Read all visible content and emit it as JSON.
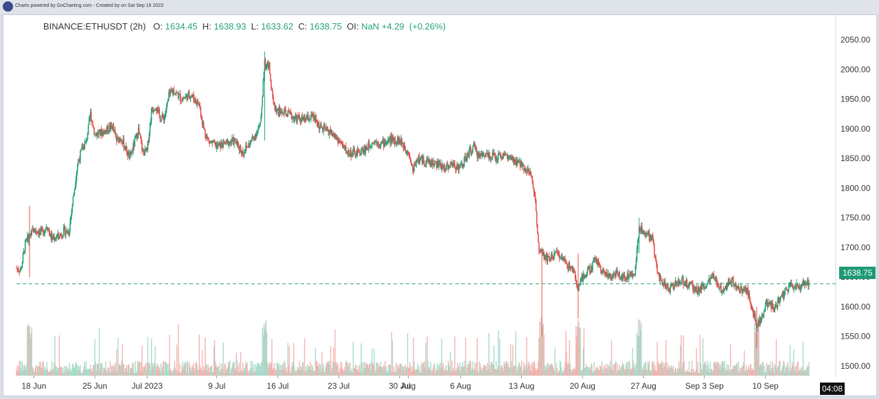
{
  "credit": "Charts powered by GoCharting.com - Created by  on Sat Sep 16 2023",
  "header": {
    "symbol": "BINANCE:ETHUSDT (2h)",
    "o_label": "O:",
    "o_value": "1634.45",
    "h_label": "H:",
    "h_value": "1638.93",
    "l_label": "L:",
    "l_value": "1633.62",
    "c_label": "C:",
    "c_value": "1638.75",
    "oi_label": "OI:",
    "oi_value": "NaN",
    "change": "+4.29",
    "change_pct": "(+0.26%)"
  },
  "last_price_label": "1638.75",
  "time_label": "04:08",
  "colors": {
    "up": "#26a17b",
    "down": "#e0524c",
    "vol_up": "#a6dccb",
    "vol_down": "#f4b3b0",
    "price_line": "#1e9a74"
  },
  "chart_data": {
    "type": "candlestick",
    "symbol": "BINANCE:ETHUSDT",
    "interval": "2h",
    "ylim": [
      1490,
      2090
    ],
    "y_ticks": [
      1500,
      1550,
      1600,
      1650,
      1700,
      1750,
      1800,
      1850,
      1900,
      1950,
      2000,
      2050
    ],
    "y_tick_labels": [
      "1500.00",
      "1550.00",
      "1600.00",
      "1650.00",
      "1700.00",
      "1750.00",
      "1800.00",
      "1850.00",
      "1900.00",
      "1950.00",
      "2000.00",
      "2050.00"
    ],
    "x_tick_labels": [
      "18 Jun",
      "25 Jun",
      "Jul 2023",
      "9 Jul",
      "16 Jul",
      "23 Jul",
      "30 Jul",
      "Aug",
      "6 Aug",
      "13 Aug",
      "20 Aug",
      "27 Aug",
      "Sep 3 Sep",
      "10 Sep"
    ],
    "x_tick_days": [
      2,
      9,
      15,
      23,
      30,
      37,
      44,
      45,
      51,
      58,
      65,
      72,
      79,
      86
    ],
    "days_span": 94,
    "last_price": 1638.75,
    "close_path": [
      [
        0,
        1665
      ],
      [
        0.5,
        1662
      ],
      [
        1,
        1705
      ],
      [
        1.5,
        1722
      ],
      [
        2,
        1730
      ],
      [
        3,
        1725
      ],
      [
        3.5,
        1738
      ],
      [
        4,
        1715
      ],
      [
        5,
        1720
      ],
      [
        5.5,
        1728
      ],
      [
        6,
        1725
      ],
      [
        7,
        1840
      ],
      [
        7.5,
        1865
      ],
      [
        8,
        1878
      ],
      [
        8.5,
        1925
      ],
      [
        9,
        1890
      ],
      [
        10,
        1895
      ],
      [
        11,
        1905
      ],
      [
        11.5,
        1880
      ],
      [
        12,
        1885
      ],
      [
        13,
        1850
      ],
      [
        14,
        1898
      ],
      [
        14.5,
        1860
      ],
      [
        15,
        1862
      ],
      [
        15.5,
        1930
      ],
      [
        16,
        1940
      ],
      [
        16.5,
        1918
      ],
      [
        17,
        1920
      ],
      [
        17.5,
        1955
      ],
      [
        18,
        1965
      ],
      [
        19,
        1950
      ],
      [
        20,
        1958
      ],
      [
        21,
        1940
      ],
      [
        21.5,
        1900
      ],
      [
        22,
        1880
      ],
      [
        23,
        1870
      ],
      [
        24,
        1875
      ],
      [
        25,
        1880
      ],
      [
        26,
        1860
      ],
      [
        27,
        1880
      ],
      [
        28,
        1905
      ],
      [
        28.5,
        2010
      ],
      [
        29,
        2005
      ],
      [
        29.5,
        1940
      ],
      [
        30,
        1930
      ],
      [
        31,
        1925
      ],
      [
        32,
        1918
      ],
      [
        33,
        1915
      ],
      [
        34,
        1920
      ],
      [
        35,
        1900
      ],
      [
        36,
        1895
      ],
      [
        37,
        1880
      ],
      [
        38,
        1860
      ],
      [
        39,
        1858
      ],
      [
        40,
        1865
      ],
      [
        41,
        1880
      ],
      [
        42,
        1875
      ],
      [
        43,
        1882
      ],
      [
        44,
        1880
      ],
      [
        45,
        1862
      ],
      [
        45.5,
        1830
      ],
      [
        46,
        1850
      ],
      [
        47,
        1845
      ],
      [
        48,
        1842
      ],
      [
        49,
        1835
      ],
      [
        50,
        1840
      ],
      [
        51,
        1835
      ],
      [
        52,
        1860
      ],
      [
        52.5,
        1870
      ],
      [
        53,
        1855
      ],
      [
        54,
        1858
      ],
      [
        55,
        1852
      ],
      [
        56,
        1857
      ],
      [
        57,
        1845
      ],
      [
        58,
        1840
      ],
      [
        59,
        1825
      ],
      [
        59.5,
        1790
      ],
      [
        60,
        1700
      ],
      [
        60.3,
        1690
      ],
      [
        61,
        1680
      ],
      [
        62,
        1690
      ],
      [
        63,
        1675
      ],
      [
        64,
        1660
      ],
      [
        64.5,
        1628
      ],
      [
        65,
        1650
      ],
      [
        66,
        1665
      ],
      [
        66.5,
        1682
      ],
      [
        67,
        1668
      ],
      [
        68,
        1650
      ],
      [
        69,
        1655
      ],
      [
        70,
        1650
      ],
      [
        71,
        1660
      ],
      [
        71.5,
        1735
      ],
      [
        72,
        1725
      ],
      [
        73,
        1715
      ],
      [
        73.5,
        1670
      ],
      [
        74,
        1640
      ],
      [
        75,
        1630
      ],
      [
        76,
        1645
      ],
      [
        77,
        1640
      ],
      [
        78,
        1628
      ],
      [
        79,
        1635
      ],
      [
        80,
        1650
      ],
      [
        81,
        1628
      ],
      [
        82,
        1645
      ],
      [
        83,
        1632
      ],
      [
        84,
        1625
      ],
      [
        84.5,
        1595
      ],
      [
        85,
        1570
      ],
      [
        85.5,
        1580
      ],
      [
        86,
        1605
      ],
      [
        87,
        1598
      ],
      [
        88,
        1620
      ],
      [
        89,
        1638
      ],
      [
        90,
        1630
      ],
      [
        90.5,
        1640
      ],
      [
        91,
        1638.75
      ]
    ],
    "spikes": [
      {
        "day": 1.5,
        "high": 1770,
        "low": 1650
      },
      {
        "day": 28.5,
        "high": 2030,
        "low": 1880
      },
      {
        "day": 60.3,
        "high": 1700,
        "low": 1550
      },
      {
        "day": 64.5,
        "high": 1690,
        "low": 1580
      },
      {
        "day": 71.5,
        "high": 1750,
        "low": 1690
      },
      {
        "day": 85,
        "high": 1600,
        "low": 1530
      }
    ]
  }
}
